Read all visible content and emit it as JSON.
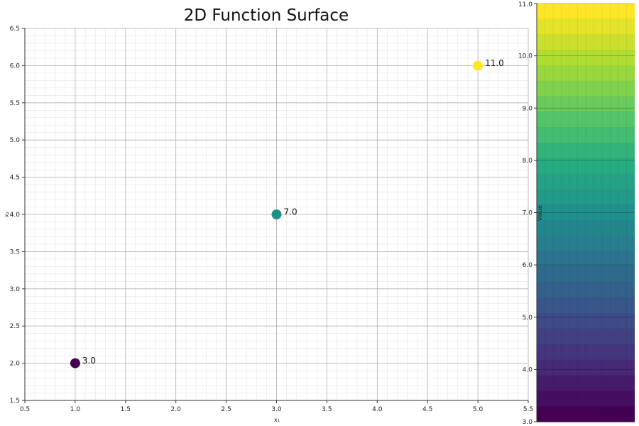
{
  "chart_data": {
    "type": "scatter",
    "title": "2D Function Surface",
    "xlabel": "x₁",
    "ylabel": "x₂",
    "xlim": [
      0.5,
      5.5
    ],
    "ylim": [
      1.5,
      6.5
    ],
    "x_ticks": [
      "0.5",
      "1.0",
      "1.5",
      "2.0",
      "2.5",
      "3.0",
      "3.5",
      "4.0",
      "4.5",
      "5.0",
      "5.5"
    ],
    "y_ticks": [
      "1.5",
      "2.0",
      "2.5",
      "3.0",
      "3.5",
      "4.0",
      "4.5",
      "5.0",
      "5.5",
      "6.0",
      "6.5"
    ],
    "grid": true,
    "minor_grid": true,
    "points": [
      {
        "x": 1,
        "y": 2,
        "value": 3.0,
        "label": "3.0"
      },
      {
        "x": 3,
        "y": 4,
        "value": 7.0,
        "label": "7.0"
      },
      {
        "x": 5,
        "y": 6,
        "value": 11.0,
        "label": "11.0"
      }
    ],
    "colorbar": {
      "label": "Value",
      "range": [
        3.0,
        11.0
      ],
      "ticks": [
        "3.0",
        "4.0",
        "5.0",
        "6.0",
        "7.0",
        "8.0",
        "9.0",
        "10.0",
        "11.0"
      ],
      "colormap": "viridis",
      "levels": 27
    }
  },
  "colors": {
    "grid_major": "#b0b0b0",
    "grid_minor": "#e4e4e4",
    "axis": "#333333"
  }
}
